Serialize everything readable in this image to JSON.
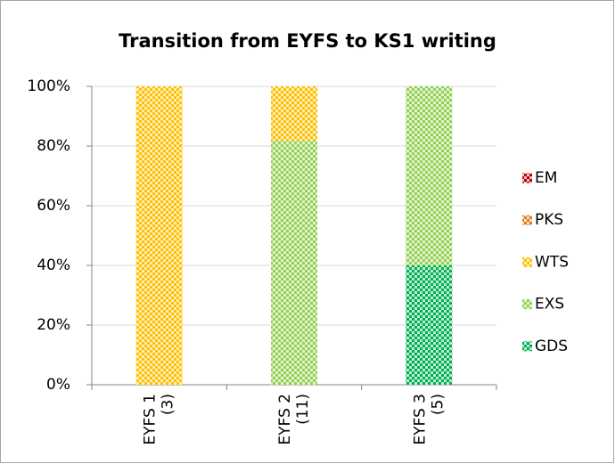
{
  "chart_data": {
    "type": "stacked_bar",
    "title": "Transition from EYFS to KS1 writing",
    "categories": [
      "EYFS 1\n(3)",
      "EYFS 2\n(11)",
      "EYFS 3\n(5)"
    ],
    "series": [
      {
        "name": "GDS",
        "color": "#00b050",
        "values": [
          0,
          0,
          40
        ]
      },
      {
        "name": "EXS",
        "color": "#92d050",
        "values": [
          0,
          81.8,
          60
        ]
      },
      {
        "name": "WTS",
        "color": "#ffc000",
        "values": [
          100,
          18.2,
          0
        ]
      },
      {
        "name": "PKS",
        "color": "#e07b20",
        "values": [
          0,
          0,
          0
        ]
      },
      {
        "name": "EM",
        "color": "#c00000",
        "values": [
          0,
          0,
          0
        ]
      }
    ],
    "ylim": [
      0,
      100
    ],
    "yticks": [
      {
        "value": 0,
        "label": "0%"
      },
      {
        "value": 20,
        "label": "20%"
      },
      {
        "value": 40,
        "label": "40%"
      },
      {
        "value": 60,
        "label": "60%"
      },
      {
        "value": 80,
        "label": "80%"
      },
      {
        "value": 100,
        "label": "100%"
      }
    ],
    "grid": true,
    "legend": "right"
  }
}
